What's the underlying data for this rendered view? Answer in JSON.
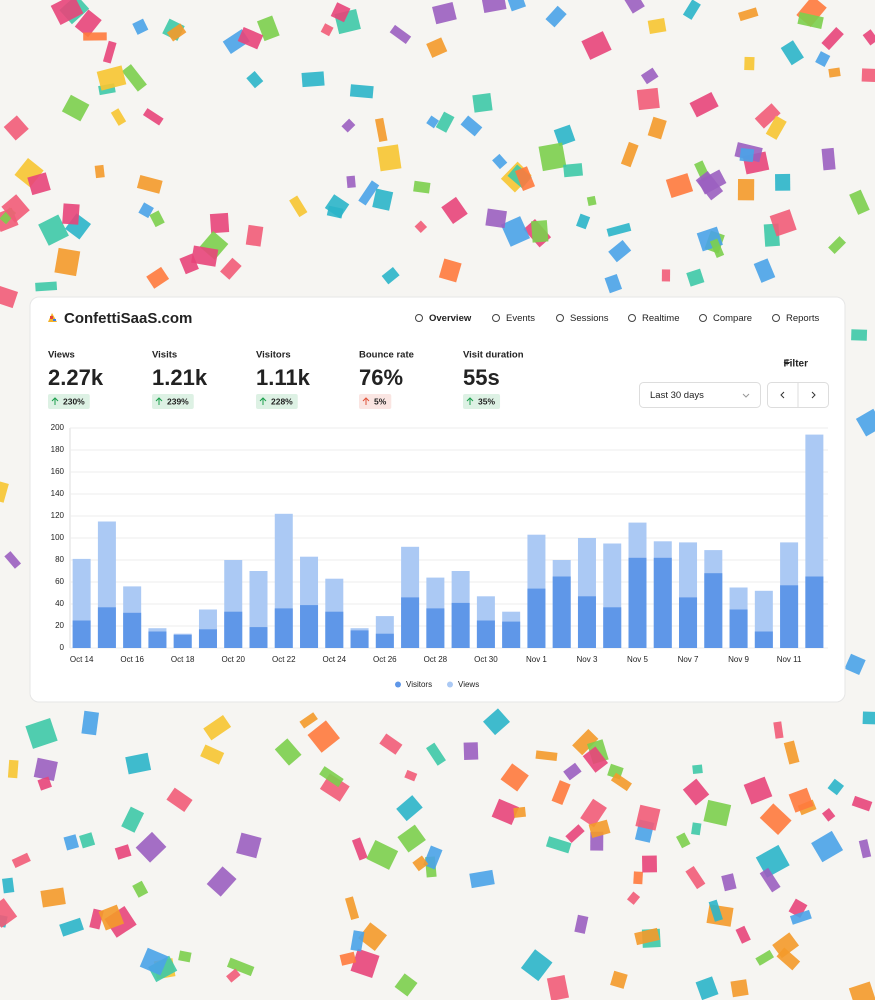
{
  "header": {
    "site": "ConfettiSaaS.com"
  },
  "nav": [
    "Overview",
    "Events",
    "Sessions",
    "Realtime",
    "Compare",
    "Reports"
  ],
  "metrics": [
    {
      "label": "Views",
      "value": "2.27k",
      "change": "230%",
      "color": "#1a9e4b"
    },
    {
      "label": "Visits",
      "value": "1.21k",
      "change": "239%",
      "color": "#1a9e4b"
    },
    {
      "label": "Visitors",
      "value": "1.11k",
      "change": "228%",
      "color": "#1a9e4b"
    },
    {
      "label": "Bounce rate",
      "value": "76%",
      "change": "5%",
      "color": "#e0523a"
    },
    {
      "label": "Visit duration",
      "value": "55s",
      "change": "35%",
      "color": "#1a9e4b"
    }
  ],
  "controls": {
    "filter": "Filter",
    "range": "Last 30 days"
  },
  "chart_data": {
    "type": "bar",
    "categories": [
      "Oct 14",
      null,
      "Oct 16",
      null,
      "Oct 18",
      null,
      "Oct 20",
      null,
      "Oct 22",
      null,
      "Oct 24",
      null,
      "Oct 26",
      null,
      "Oct 28",
      null,
      "Oct 30",
      null,
      "Nov 1",
      null,
      "Nov 3",
      null,
      "Nov 5",
      null,
      "Nov 7",
      null,
      "Nov 9",
      null,
      "Nov 11",
      null
    ],
    "series": [
      {
        "name": "Visitors",
        "color": "#5f97e8",
        "values": [
          25,
          37,
          32,
          15,
          12,
          17,
          33,
          19,
          36,
          39,
          33,
          16,
          13,
          46,
          36,
          41,
          25,
          24,
          54,
          65,
          47,
          37,
          82,
          82,
          46,
          68,
          35,
          15,
          57,
          65
        ]
      },
      {
        "name": "Views",
        "color": "#abc9f4",
        "values": [
          81,
          115,
          56,
          18,
          13,
          35,
          80,
          70,
          122,
          83,
          63,
          18,
          29,
          92,
          64,
          70,
          47,
          33,
          103,
          80,
          100,
          95,
          114,
          97,
          96,
          89,
          55,
          52,
          96,
          194
        ]
      }
    ],
    "ylim": [
      0,
      200
    ],
    "yticks": [
      0,
      20,
      40,
      60,
      80,
      100,
      120,
      140,
      160,
      180,
      200
    ],
    "grid": true,
    "legend": "bottom"
  }
}
